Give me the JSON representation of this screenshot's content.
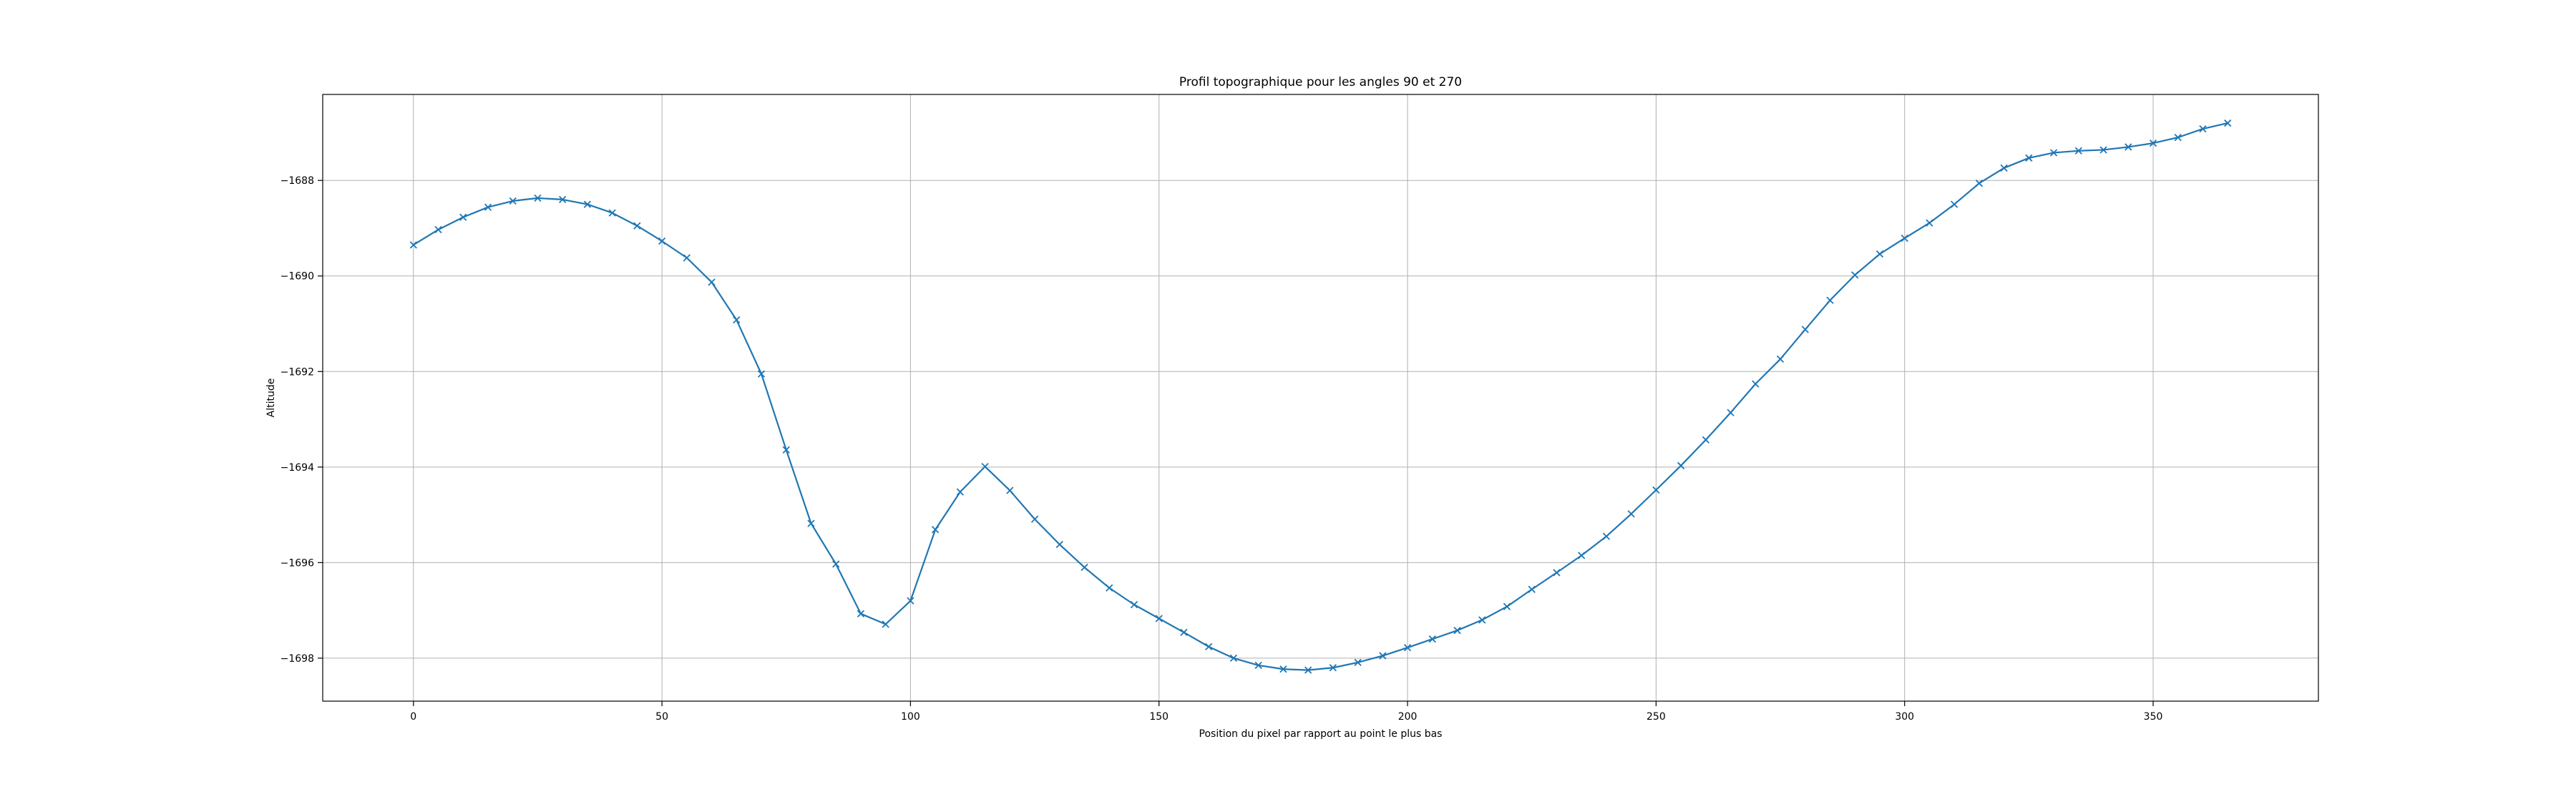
{
  "chart_data": {
    "type": "line",
    "title": "Profil topographique pour les angles 90 et 270",
    "xlabel": "Position du pixel par rapport au point le plus bas",
    "ylabel": "Altitude",
    "xlim": [
      -18.25,
      383.25
    ],
    "ylim": [
      -1698.9,
      -1686.2
    ],
    "xticks": [
      0,
      50,
      100,
      150,
      200,
      250,
      300,
      350
    ],
    "xtick_labels": [
      "0",
      "50",
      "100",
      "150",
      "200",
      "250",
      "300",
      "350"
    ],
    "yticks": [
      -1688,
      -1690,
      -1692,
      -1694,
      -1696,
      -1698
    ],
    "ytick_labels": [
      "−1688",
      "−1690",
      "−1692",
      "−1694",
      "−1696",
      "−1698"
    ],
    "grid": true,
    "marker": "x",
    "line_color": "#1f77b4",
    "series": [
      {
        "x": [
          0,
          5,
          10,
          15,
          20,
          25,
          30,
          35,
          40,
          45,
          50,
          55,
          60,
          65,
          70,
          75,
          80,
          85,
          90,
          95,
          100,
          105,
          110,
          115,
          120,
          125,
          130,
          135,
          140,
          145,
          150,
          155,
          160,
          165,
          170,
          175,
          180,
          185,
          190,
          195,
          200,
          205,
          210,
          215,
          220,
          225,
          230,
          235,
          240,
          245,
          250,
          255,
          260,
          265,
          270,
          275,
          280,
          285,
          290,
          295,
          300,
          305,
          310,
          315,
          320,
          325,
          330,
          335,
          340,
          345,
          350,
          355,
          360,
          365
        ],
        "y": [
          -1689.35,
          -1689.03,
          -1688.77,
          -1688.56,
          -1688.43,
          -1688.37,
          -1688.4,
          -1688.5,
          -1688.68,
          -1688.95,
          -1689.27,
          -1689.62,
          -1690.13,
          -1690.92,
          -1692.05,
          -1693.64,
          -1695.18,
          -1696.03,
          -1697.07,
          -1697.29,
          -1696.8,
          -1695.31,
          -1694.52,
          -1693.99,
          -1694.49,
          -1695.09,
          -1695.62,
          -1696.1,
          -1696.53,
          -1696.88,
          -1697.17,
          -1697.46,
          -1697.76,
          -1698.0,
          -1698.15,
          -1698.23,
          -1698.25,
          -1698.2,
          -1698.09,
          -1697.95,
          -1697.78,
          -1697.6,
          -1697.42,
          -1697.2,
          -1696.92,
          -1696.56,
          -1696.21,
          -1695.85,
          -1695.45,
          -1694.98,
          -1694.48,
          -1693.97,
          -1693.43,
          -1692.86,
          -1692.26,
          -1691.74,
          -1691.12,
          -1690.51,
          -1689.98,
          -1689.54,
          -1689.21,
          -1688.89,
          -1688.5,
          -1688.06,
          -1687.74,
          -1687.53,
          -1687.42,
          -1687.38,
          -1687.36,
          -1687.3,
          -1687.22,
          -1687.1,
          -1686.92,
          -1686.8
        ]
      }
    ]
  }
}
